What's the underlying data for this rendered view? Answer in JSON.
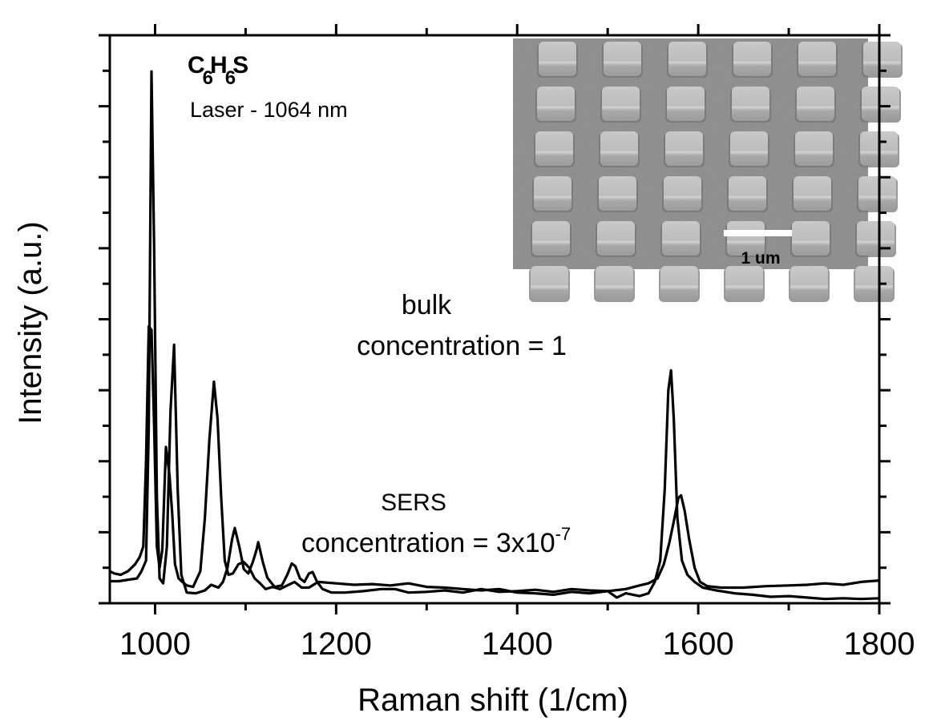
{
  "chart_data": {
    "type": "line",
    "xlabel": "Raman shift (1/cm)",
    "ylabel": "Intensity (a.u.)",
    "xlim": [
      950,
      1800
    ],
    "ylim": [
      0,
      8
    ],
    "x_ticks": [
      1000,
      1200,
      1400,
      1600,
      1800
    ],
    "x_tick_labels": [
      "1000",
      "1200",
      "1400",
      "1600",
      "1800"
    ],
    "x_minor_step": 100,
    "y_tick_labels_shown": false,
    "y_major_step": 1,
    "y_minor_step": 0.5,
    "grid": false,
    "annotations": {
      "compound": {
        "main1": "C",
        "sub1": "6",
        "main2": "H",
        "sub2": "6",
        "main3": "S"
      },
      "laser": "Laser - 1064 nm",
      "bulk_label": "bulk",
      "bulk_conc": "concentration = 1",
      "sers_label": "SERS",
      "sers_conc_base": "concentration = 3x10",
      "sers_conc_exp": "-7"
    },
    "inset": {
      "type": "SEM micrograph of square nanopillar array",
      "scale_bar_label": "1 um",
      "rows": 6,
      "cols": 6
    },
    "series": [
      {
        "name": "bulk",
        "color": "#000000",
        "x": [
          950,
          960,
          980,
          985,
          990,
          993,
          996,
          999,
          1002,
          1005,
          1009,
          1013,
          1017,
          1021,
          1025,
          1029,
          1035,
          1045,
          1055,
          1062,
          1070,
          1075,
          1080,
          1085,
          1088,
          1093,
          1098,
          1103,
          1108,
          1112,
          1114,
          1119,
          1124,
          1132,
          1140,
          1146,
          1151,
          1155,
          1160,
          1165,
          1170,
          1174,
          1179,
          1185,
          1195,
          1210,
          1230,
          1250,
          1265,
          1280,
          1300,
          1320,
          1340,
          1360,
          1380,
          1400,
          1420,
          1440,
          1460,
          1480,
          1500,
          1520,
          1535,
          1545,
          1555,
          1562,
          1568,
          1573,
          1578,
          1581,
          1585,
          1590,
          1596,
          1602,
          1610,
          1625,
          1650,
          1675,
          1700,
          1720,
          1740,
          1760,
          1780,
          1800
        ],
        "y": [
          0.31,
          0.31,
          0.35,
          0.45,
          0.6,
          2.5,
          7.49,
          5.0,
          1.5,
          0.35,
          0.28,
          0.8,
          2.7,
          3.64,
          1.6,
          0.4,
          0.15,
          0.14,
          0.18,
          0.26,
          0.22,
          0.3,
          0.5,
          0.9,
          1.06,
          0.8,
          0.48,
          0.42,
          0.58,
          0.75,
          0.86,
          0.58,
          0.36,
          0.23,
          0.25,
          0.4,
          0.56,
          0.52,
          0.35,
          0.3,
          0.42,
          0.44,
          0.3,
          0.2,
          0.15,
          0.15,
          0.17,
          0.2,
          0.2,
          0.15,
          0.16,
          0.18,
          0.15,
          0.2,
          0.16,
          0.17,
          0.19,
          0.16,
          0.2,
          0.18,
          0.17,
          0.2,
          0.25,
          0.28,
          0.35,
          0.55,
          0.85,
          1.15,
          1.48,
          1.52,
          1.3,
          0.9,
          0.5,
          0.3,
          0.24,
          0.22,
          0.22,
          0.24,
          0.25,
          0.26,
          0.28,
          0.26,
          0.3,
          0.32
        ]
      },
      {
        "name": "SERS",
        "color": "#000000",
        "x": [
          950,
          955,
          962,
          970,
          978,
          983,
          987,
          990,
          993,
          996,
          999,
          1002,
          1005,
          1008,
          1012,
          1016,
          1019,
          1022,
          1026,
          1030,
          1035,
          1042,
          1050,
          1055,
          1060,
          1065,
          1069,
          1073,
          1077,
          1081,
          1086,
          1092,
          1098,
          1104,
          1110,
          1116,
          1122,
          1130,
          1138,
          1146,
          1154,
          1162,
          1170,
          1180,
          1200,
          1220,
          1240,
          1260,
          1280,
          1300,
          1320,
          1340,
          1360,
          1380,
          1400,
          1420,
          1440,
          1460,
          1480,
          1500,
          1510,
          1520,
          1535,
          1545,
          1552,
          1558,
          1563,
          1567,
          1570,
          1573,
          1577,
          1582,
          1588,
          1596,
          1605,
          1620,
          1640,
          1660,
          1680,
          1700,
          1720,
          1740,
          1760,
          1780,
          1800
        ],
        "y": [
          0.45,
          0.42,
          0.4,
          0.45,
          0.55,
          0.65,
          0.8,
          2.0,
          3.9,
          3.85,
          2.5,
          0.8,
          0.5,
          0.75,
          2.2,
          1.8,
          1.25,
          0.55,
          0.35,
          0.3,
          0.25,
          0.23,
          0.45,
          1.2,
          2.3,
          3.12,
          2.6,
          1.5,
          0.6,
          0.4,
          0.42,
          0.55,
          0.58,
          0.5,
          0.35,
          0.28,
          0.2,
          0.23,
          0.2,
          0.25,
          0.3,
          0.22,
          0.22,
          0.3,
          0.28,
          0.26,
          0.27,
          0.25,
          0.28,
          0.23,
          0.22,
          0.2,
          0.18,
          0.2,
          0.15,
          0.14,
          0.12,
          0.16,
          0.14,
          0.17,
          0.08,
          0.14,
          0.1,
          0.14,
          0.3,
          0.6,
          1.6,
          3.0,
          3.28,
          2.6,
          1.2,
          0.6,
          0.4,
          0.3,
          0.22,
          0.18,
          0.14,
          0.12,
          0.09,
          0.1,
          0.08,
          0.06,
          0.07,
          0.06,
          0.07
        ]
      }
    ]
  }
}
